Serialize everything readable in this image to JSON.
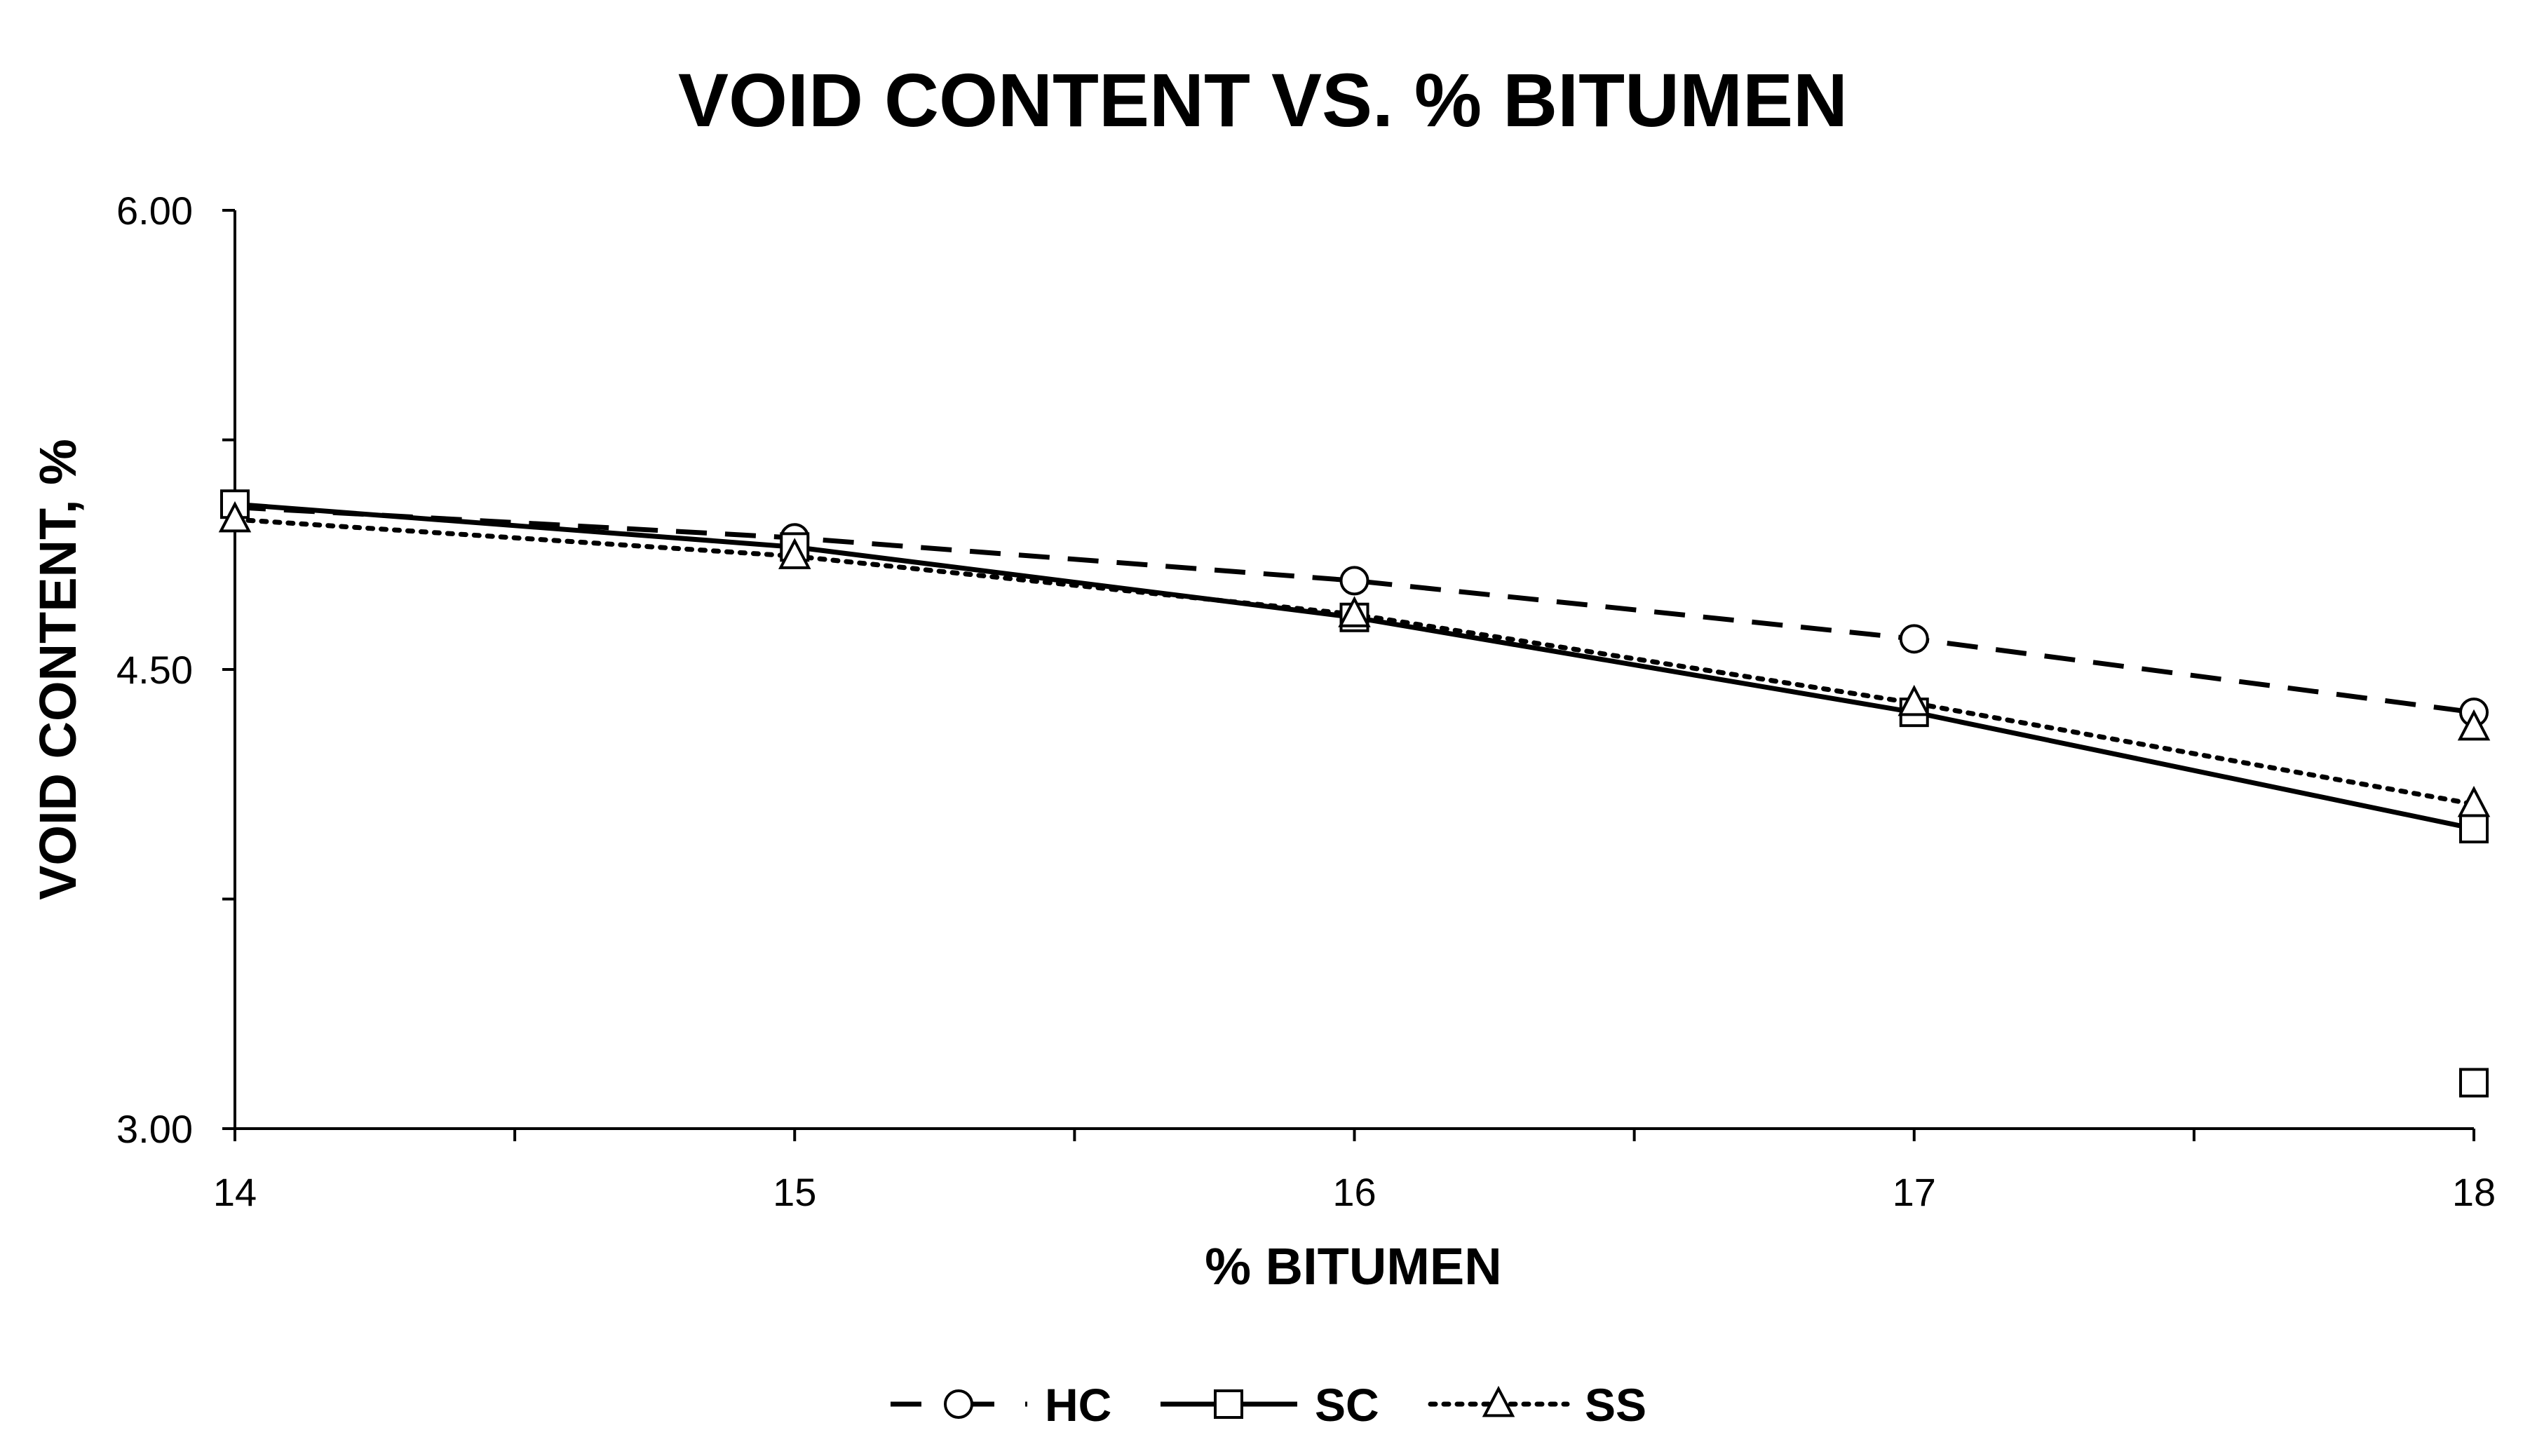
{
  "chart_data": {
    "type": "line",
    "title": "VOID CONTENT VS. % BITUMEN",
    "xlabel": "% BITUMEN",
    "ylabel": "VOID CONTENT, %",
    "x": [
      14,
      15,
      16,
      17,
      18
    ],
    "x_tick_labels": [
      "14",
      "15",
      "16",
      "17",
      "18"
    ],
    "y_tick_labels": [
      "6.00",
      "4.50",
      "3.00"
    ],
    "xlim": [
      14,
      18
    ],
    "ylim": [
      3.0,
      6.0
    ],
    "y_ticks": [
      3.0,
      3.75,
      4.5,
      5.25,
      6.0
    ],
    "x_minor_ticks": [
      14.5,
      15.5,
      16.5,
      17.5
    ],
    "grid": false,
    "legend_position": "bottom",
    "series": [
      {
        "name": "HC",
        "values": [
          5.03,
          4.93,
          4.79,
          4.6,
          4.36
        ],
        "marker": "circle",
        "line_style": "dashed",
        "color": "#000000"
      },
      {
        "name": "SC",
        "values": [
          5.04,
          4.9,
          4.67,
          4.36,
          3.98
        ],
        "marker": "square",
        "line_style": "solid",
        "color": "#000000"
      },
      {
        "name": "SS",
        "values": [
          4.99,
          4.87,
          4.68,
          4.39,
          4.06
        ],
        "marker": "triangle",
        "line_style": "dotted",
        "color": "#000000"
      }
    ],
    "extra_points": [
      {
        "series": "HC",
        "x": 18,
        "y": 4.36,
        "marker": "circle"
      },
      {
        "series": "SS",
        "x": 18,
        "y": 4.31,
        "marker": "triangle"
      },
      {
        "series": "SC",
        "x": 18,
        "y": 3.15,
        "marker": "square"
      }
    ]
  }
}
